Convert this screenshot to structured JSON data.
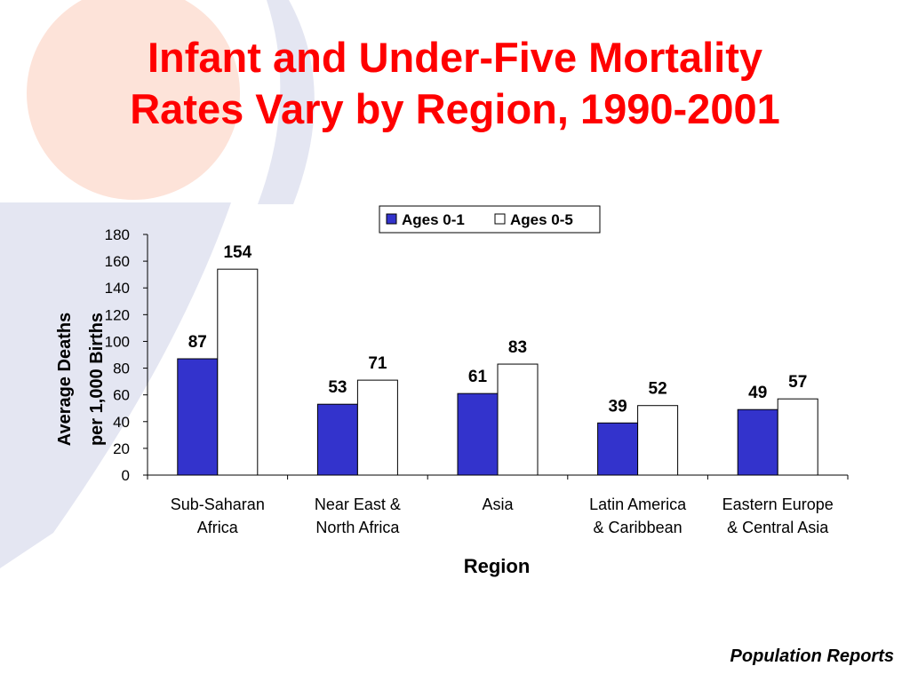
{
  "title": [
    "Infant and Under-Five Mortality",
    "Rates Vary by Region, 1990-2001"
  ],
  "source": "Population Reports",
  "colors": {
    "title": "#ff0000",
    "series_0_1": "#3333cc",
    "series_0_5": "#ffffff"
  },
  "chart_data": {
    "type": "bar",
    "categories": [
      [
        "Sub-Saharan",
        "Africa"
      ],
      [
        "Near East &",
        "North Africa"
      ],
      [
        "Asia"
      ],
      [
        "Latin America",
        "& Caribbean"
      ],
      [
        "Eastern Europe",
        "& Central Asia"
      ]
    ],
    "series": [
      {
        "name": "Ages 0-1",
        "values": [
          87,
          53,
          61,
          39,
          49
        ],
        "color": "#3333cc"
      },
      {
        "name": "Ages 0-5",
        "values": [
          154,
          71,
          83,
          52,
          57
        ],
        "color": "#ffffff"
      }
    ],
    "xlabel": "Region",
    "ylabel": [
      "Average  Deaths",
      "per 1,000 Births"
    ],
    "ylim": [
      0,
      180
    ],
    "yticks": [
      0,
      20,
      40,
      60,
      80,
      100,
      120,
      140,
      160,
      180
    ],
    "grid": false,
    "legend": "top-right"
  }
}
